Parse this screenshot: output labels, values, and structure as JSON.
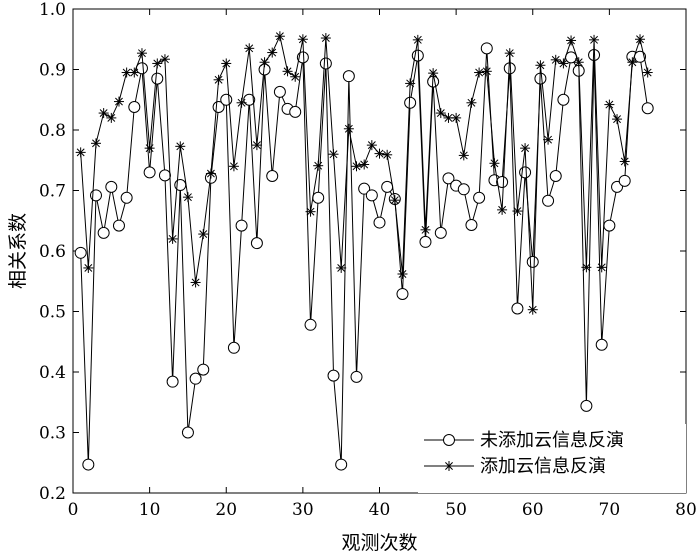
{
  "chart_data": {
    "type": "line",
    "title": "",
    "xlabel": "观测次数",
    "ylabel": "相关系数",
    "xlim": [
      0,
      80
    ],
    "ylim": [
      0.2,
      1.0
    ],
    "xticks": [
      0,
      10,
      20,
      30,
      40,
      50,
      60,
      70,
      80
    ],
    "yticks": [
      0.2,
      0.3,
      0.4,
      0.5,
      0.6,
      0.7,
      0.8,
      0.9,
      1.0
    ],
    "grid": false,
    "legend_position": "bottom-right",
    "x": [
      1,
      2,
      3,
      4,
      5,
      6,
      7,
      8,
      9,
      10,
      11,
      12,
      13,
      14,
      15,
      16,
      17,
      18,
      19,
      20,
      21,
      22,
      23,
      24,
      25,
      26,
      27,
      28,
      29,
      30,
      31,
      32,
      33,
      34,
      35,
      36,
      37,
      38,
      39,
      40,
      41,
      42,
      43,
      44,
      45,
      46,
      47,
      48,
      49,
      50,
      51,
      52,
      53,
      54,
      55,
      56,
      57,
      58,
      59,
      60,
      61,
      62,
      63,
      64,
      65,
      66,
      67,
      68,
      69,
      70,
      71,
      72,
      73,
      74,
      75
    ],
    "series": [
      {
        "name": "未添加云信息反演",
        "marker": "circle",
        "values": [
          0.597,
          0.247,
          0.692,
          0.63,
          0.706,
          0.642,
          0.688,
          0.838,
          0.902,
          0.73,
          0.885,
          0.725,
          0.384,
          0.709,
          0.3,
          0.389,
          0.404,
          0.721,
          0.838,
          0.85,
          0.44,
          0.642,
          0.85,
          0.613,
          0.9,
          0.724,
          0.863,
          0.835,
          0.83,
          0.92,
          0.478,
          0.688,
          0.91,
          0.394,
          0.247,
          0.889,
          0.392,
          0.703,
          0.692,
          0.647,
          0.706,
          0.686,
          0.529,
          0.845,
          0.923,
          0.615,
          0.88,
          0.63,
          0.72,
          0.708,
          0.702,
          0.643,
          0.688,
          0.935,
          0.717,
          0.714,
          0.902,
          0.505,
          0.73,
          0.582,
          0.885,
          0.683,
          0.724,
          0.85,
          0.92,
          0.898,
          0.344,
          0.924,
          0.445,
          0.642,
          0.706,
          0.716,
          0.921,
          0.921,
          0.836
        ]
      },
      {
        "name": "添加云信息反演",
        "marker": "star",
        "values": [
          0.763,
          0.572,
          0.778,
          0.828,
          0.82,
          0.847,
          0.895,
          0.895,
          0.927,
          0.77,
          0.91,
          0.917,
          0.62,
          0.773,
          0.689,
          0.548,
          0.628,
          0.728,
          0.883,
          0.91,
          0.74,
          0.845,
          0.935,
          0.775,
          0.912,
          0.928,
          0.955,
          0.897,
          0.888,
          0.95,
          0.665,
          0.741,
          0.952,
          0.76,
          0.572,
          0.802,
          0.74,
          0.743,
          0.775,
          0.761,
          0.759,
          0.684,
          0.562,
          0.877,
          0.949,
          0.635,
          0.894,
          0.828,
          0.82,
          0.82,
          0.758,
          0.845,
          0.895,
          0.897,
          0.745,
          0.668,
          0.927,
          0.666,
          0.77,
          0.503,
          0.907,
          0.784,
          0.916,
          0.91,
          0.948,
          0.912,
          0.573,
          0.949,
          0.573,
          0.842,
          0.818,
          0.748,
          0.912,
          0.95,
          0.895
        ]
      }
    ]
  }
}
